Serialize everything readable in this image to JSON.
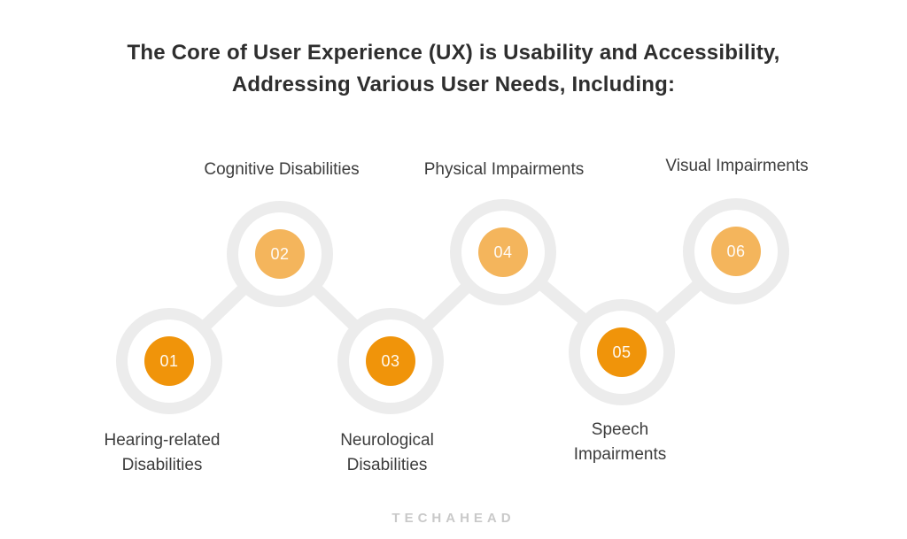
{
  "title": {
    "line1": "The Core of User Experience (UX) is Usability and Accessibility,",
    "line2": "Addressing Various User Needs, Including:"
  },
  "nodes": [
    {
      "number": "01",
      "label": "Hearing-related Disabilities",
      "position": "bottom",
      "tone": "dark-orange"
    },
    {
      "number": "02",
      "label": "Cognitive Disabilities",
      "position": "top",
      "tone": "light-orange"
    },
    {
      "number": "03",
      "label": "Neurological Disabilities",
      "position": "bottom",
      "tone": "dark-orange"
    },
    {
      "number": "04",
      "label": "Physical Impairments",
      "position": "top",
      "tone": "light-orange"
    },
    {
      "number": "05",
      "label": "Speech Impairments",
      "position": "bottom",
      "tone": "dark-orange"
    },
    {
      "number": "06",
      "label": "Visual Impairments",
      "position": "top",
      "tone": "light-orange"
    }
  ],
  "colors": {
    "dark_orange": "#f0940a",
    "light_orange": "#f4b55c",
    "ring_gray": "#ececec",
    "title_text": "#2e2e2e",
    "label_text": "#3d3d3d",
    "logo_gray": "#c9c9c9"
  },
  "footer": {
    "brand": "TECHAHEAD"
  }
}
